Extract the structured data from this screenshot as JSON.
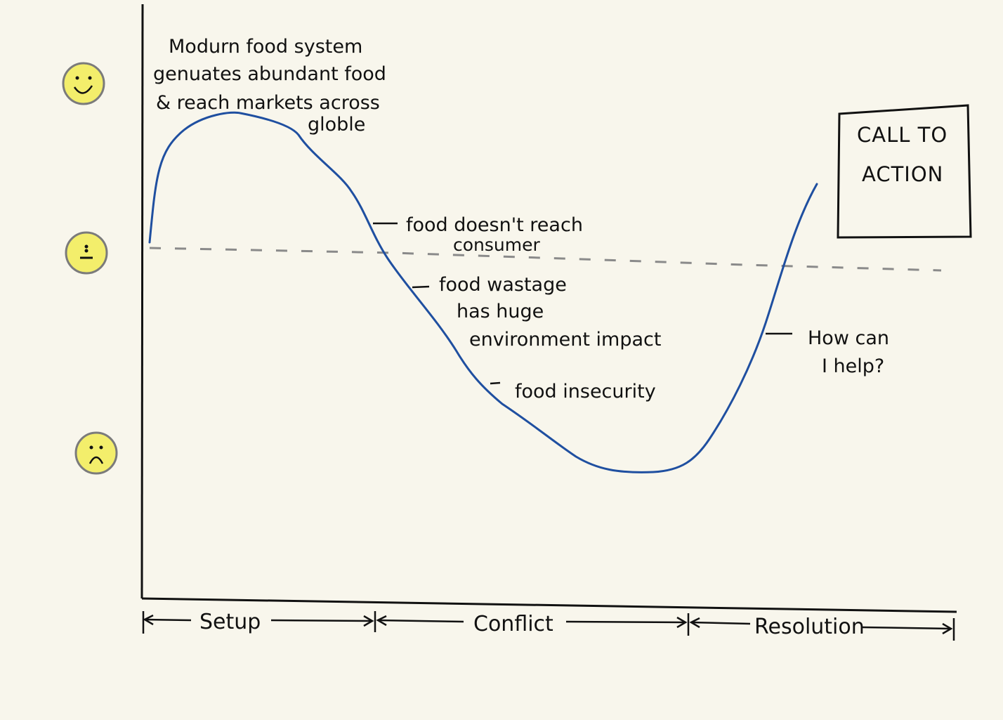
{
  "moods": {
    "happy": "smiley-happy",
    "neutral": "smiley-neutral",
    "sad": "smiley-sad",
    "face_color": "#f3ee6b",
    "ring_color": "#7b7b7b"
  },
  "curve": {
    "color": "#1f4fa0",
    "baseline_color": "#8a8a8a"
  },
  "annotations": {
    "peak": [
      "Modurn food system",
      "genuates abundant food",
      "& reach markets across",
      "globle"
    ],
    "reach": [
      "food doesn't reach",
      "consumer"
    ],
    "waste": [
      "food wastage",
      "has huge",
      "environment impact"
    ],
    "insecurity": "food insecurity",
    "help": [
      "How can",
      "I help?"
    ]
  },
  "call_to_action": [
    "CALL TO",
    "ACTION"
  ],
  "phases": {
    "setup": "Setup",
    "conflict": "Conflict",
    "resolution": "Resolution"
  }
}
